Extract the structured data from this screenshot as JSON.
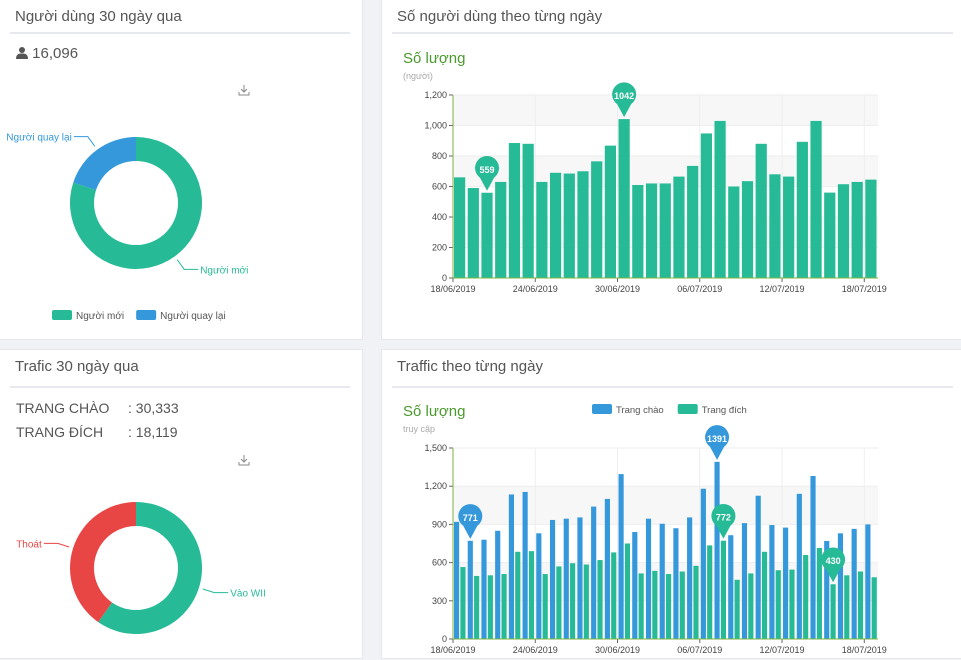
{
  "users_panel": {
    "title": "Người dùng 30 ngày qua",
    "icon": "user-icon",
    "total": "16,096",
    "download_icon": "download-icon",
    "chart_data": {
      "type": "pie",
      "donut": true,
      "slices": [
        {
          "label": "Người mới",
          "value": 80,
          "color": "#26bb96"
        },
        {
          "label": "Người quay lại",
          "value": 20,
          "color": "#3498db"
        }
      ],
      "legend": [
        "Người mới",
        "Người quay lại"
      ],
      "legend_position": "bottom"
    }
  },
  "traffic_panel": {
    "title": "Trafic 30 ngày qua",
    "rows": [
      {
        "label": "TRANG CHÀO",
        "value": ": 30,333"
      },
      {
        "label": "TRANG ĐÍCH",
        "value": ": 18,119"
      }
    ],
    "download_icon": "download-icon",
    "chart_data": {
      "type": "pie",
      "donut": true,
      "slices": [
        {
          "label": "Vào WII",
          "value": 59.7,
          "color": "#26bb96"
        },
        {
          "label": "Thoát",
          "value": 40.3,
          "color": "#e84545"
        }
      ]
    }
  },
  "daily_users": {
    "title": "Số người dùng theo từng ngày",
    "chart_data": {
      "type": "bar",
      "title": "Số lượng",
      "ylabel": "(người)",
      "ylim": [
        0,
        1200
      ],
      "yticks": [
        "0",
        "200",
        "400",
        "600",
        "800",
        "1,000",
        "1,200"
      ],
      "xticks": [
        "18/06/2019",
        "24/06/2019",
        "30/06/2019",
        "06/07/2019",
        "12/07/2019",
        "18/07/2019"
      ],
      "series": [
        {
          "color": "#26bb96",
          "values": [
            660,
            590,
            559,
            630,
            885,
            880,
            630,
            690,
            685,
            700,
            765,
            868,
            1042,
            610,
            620,
            620,
            665,
            735,
            948,
            1030,
            600,
            635,
            880,
            680,
            665,
            893,
            1030,
            560,
            615,
            630,
            645
          ]
        }
      ],
      "markers": [
        {
          "series": 0,
          "index": 2,
          "label": "559"
        },
        {
          "series": 0,
          "index": 12,
          "label": "1042"
        }
      ],
      "grid": true
    }
  },
  "daily_traffic": {
    "title": "Traffic theo từng ngày",
    "chart_data": {
      "type": "bar",
      "title": "Số lượng",
      "ylabel": "truy cập",
      "ylim": [
        0,
        1500
      ],
      "yticks": [
        "0",
        "300",
        "600",
        "900",
        "1,200",
        "1,500"
      ],
      "xticks": [
        "18/06/2019",
        "24/06/2019",
        "30/06/2019",
        "06/07/2019",
        "12/07/2019",
        "18/07/2019"
      ],
      "legend_position": "top",
      "series": [
        {
          "name": "Trang chào",
          "color": "#3498db",
          "values": [
            920,
            771,
            780,
            850,
            1135,
            1155,
            830,
            935,
            945,
            955,
            1040,
            1100,
            1295,
            840,
            945,
            905,
            870,
            955,
            1180,
            1391,
            815,
            910,
            1125,
            895,
            875,
            1140,
            1280,
            770,
            830,
            865,
            900
          ]
        },
        {
          "name": "Trang đích",
          "color": "#26bb96",
          "values": [
            565,
            495,
            500,
            510,
            685,
            690,
            510,
            570,
            595,
            585,
            620,
            680,
            750,
            515,
            535,
            510,
            530,
            575,
            735,
            772,
            465,
            515,
            685,
            540,
            545,
            660,
            715,
            430,
            500,
            530,
            485
          ]
        }
      ],
      "markers": [
        {
          "series": 0,
          "index": 1,
          "label": "771"
        },
        {
          "series": 0,
          "index": 19,
          "label": "1391"
        },
        {
          "series": 1,
          "index": 19,
          "label": "772"
        },
        {
          "series": 1,
          "index": 27,
          "label": "430"
        }
      ],
      "grid": true
    }
  }
}
